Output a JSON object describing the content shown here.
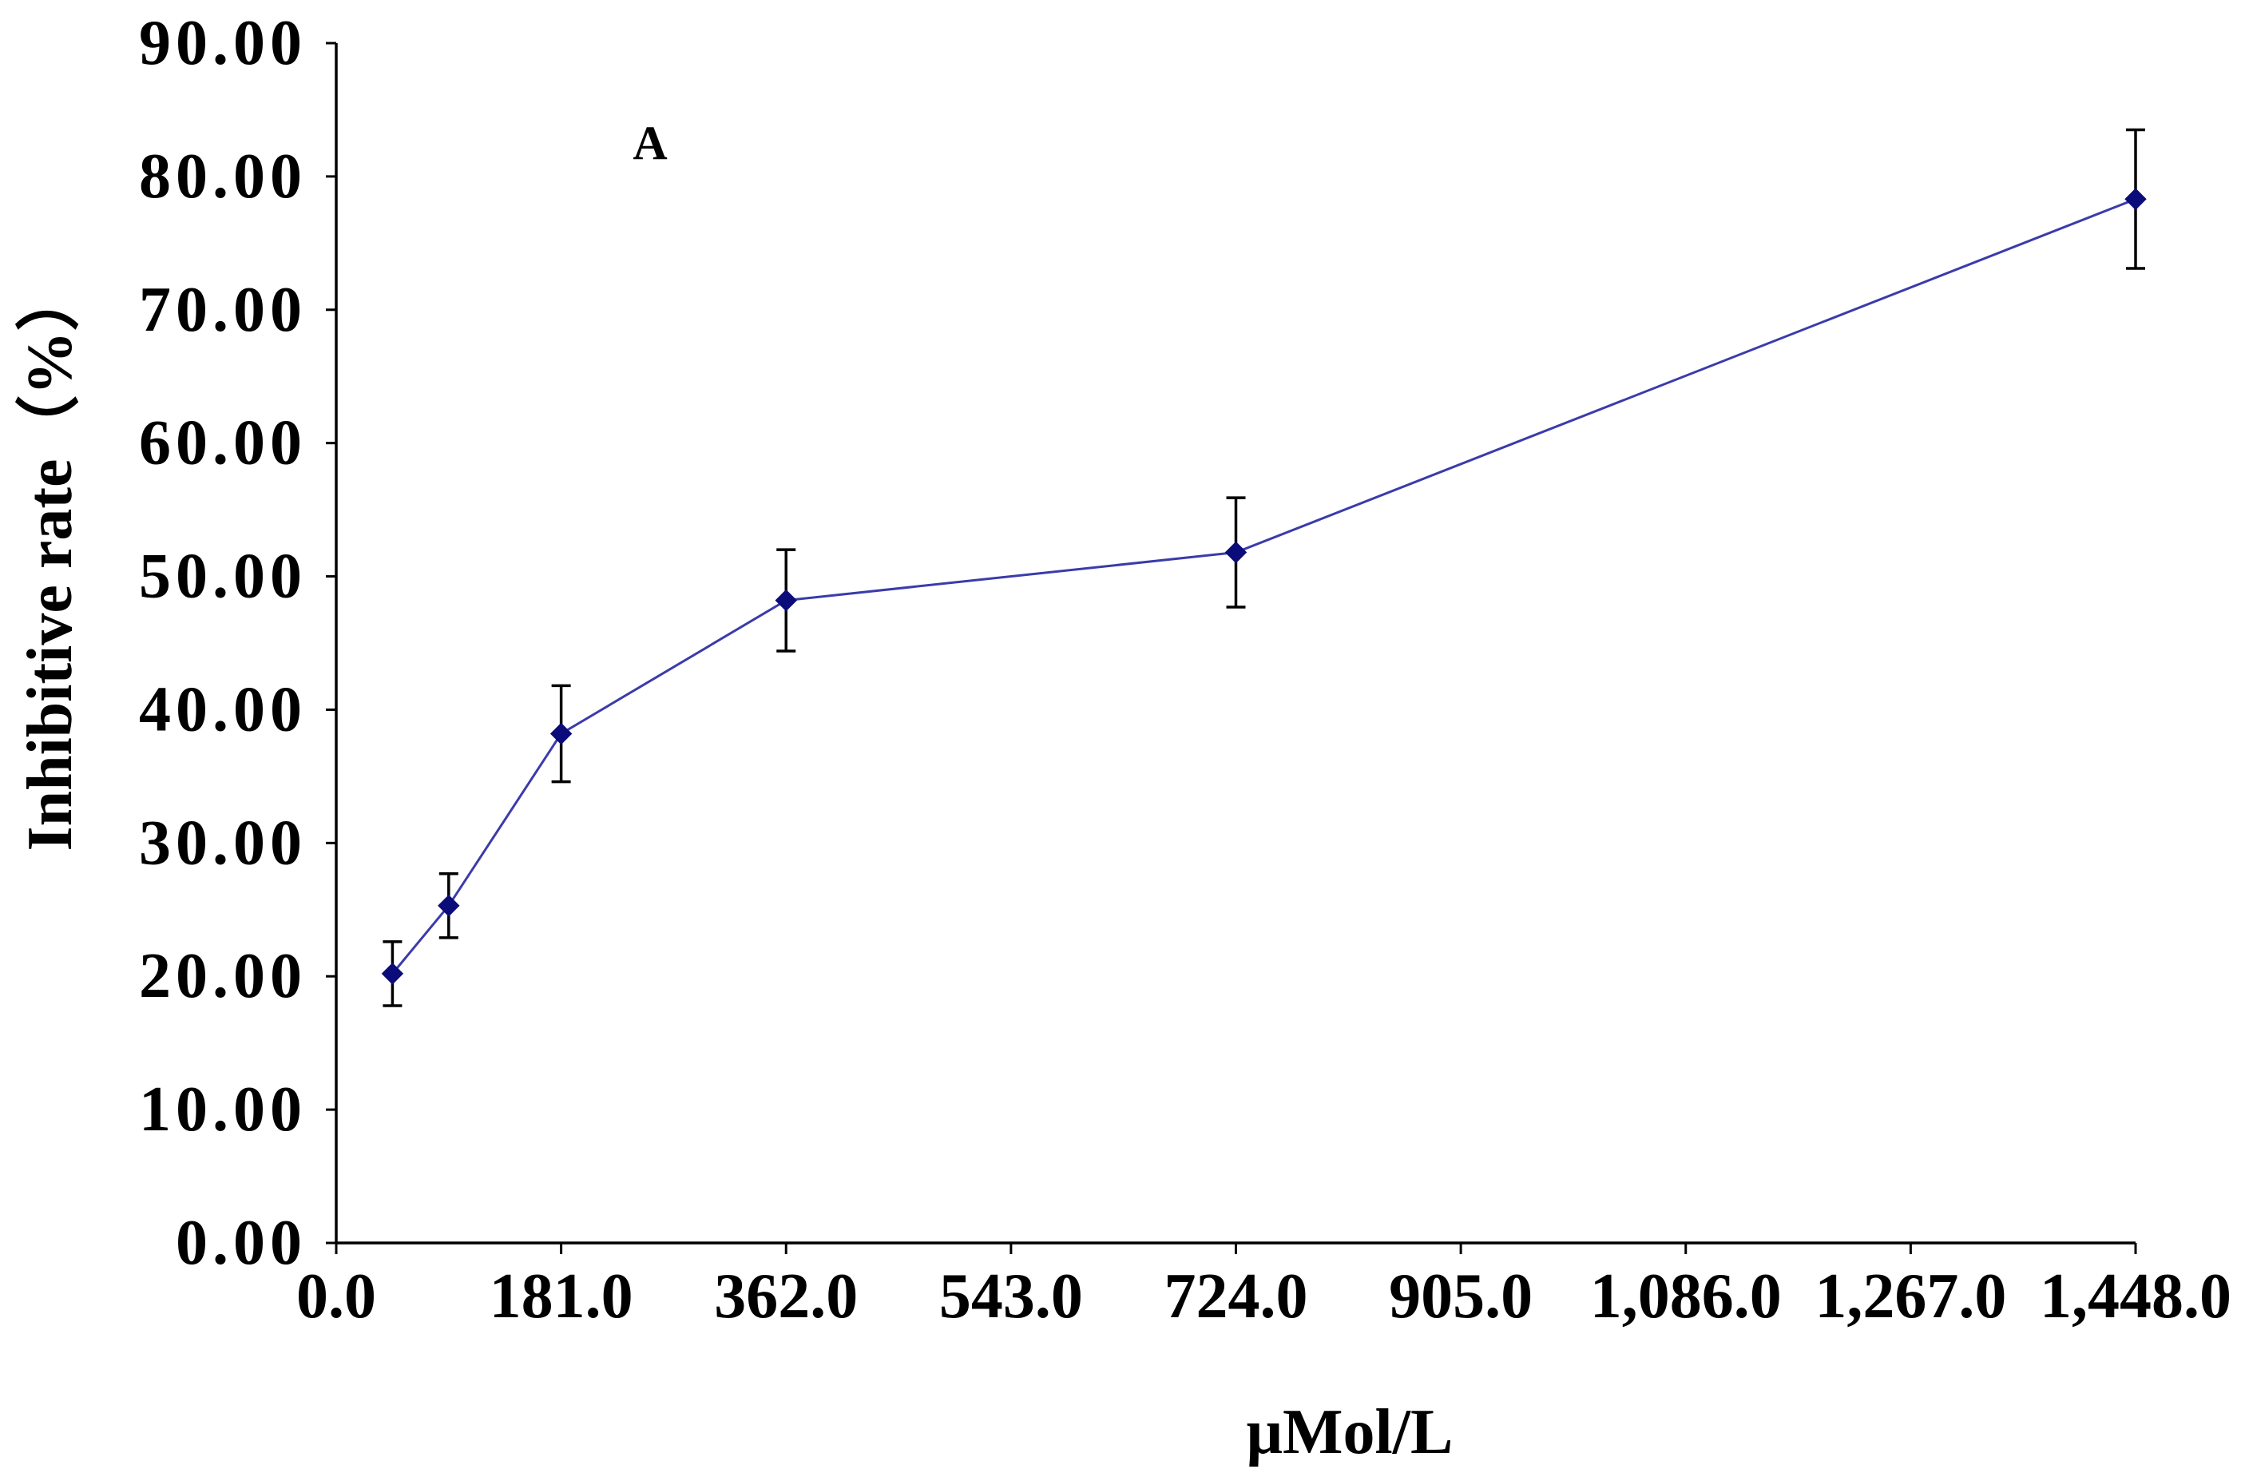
{
  "chart_data": {
    "type": "line",
    "annotation": "A",
    "title": "",
    "xlabel": "μMol/L",
    "ylabel": "Inhibitive rate（%）",
    "xlim": [
      0,
      1448
    ],
    "ylim": [
      0,
      90
    ],
    "grid": false,
    "legend": "none",
    "x_ticks": [
      0,
      181,
      362,
      543,
      724,
      905,
      1086,
      1267,
      1448
    ],
    "x_tick_labels": [
      "0.0",
      "181.0",
      "362.0",
      "543.0",
      "724.0",
      "905.0",
      "1,086.0",
      "1,267.0",
      "1,448.0"
    ],
    "y_ticks": [
      0,
      10,
      20,
      30,
      40,
      50,
      60,
      70,
      80,
      90
    ],
    "y_tick_labels": [
      "0.00",
      "10.00",
      "20.00",
      "30.00",
      "40.00",
      "50.00",
      "60.00",
      "70.00",
      "80.00",
      "90.00"
    ],
    "series": [
      {
        "name": "Inhibitive rate",
        "x": [
          45.25,
          90.5,
          181,
          362,
          724,
          1448
        ],
        "values": [
          20.2,
          25.3,
          38.2,
          48.2,
          51.8,
          78.3
        ],
        "errors": [
          2.4,
          2.4,
          3.6,
          3.8,
          4.1,
          5.2
        ]
      }
    ],
    "colors": {
      "line": "#3b3bab",
      "marker": "#0b0b7a",
      "error_bar": "#000000",
      "axis": "#000000"
    }
  }
}
